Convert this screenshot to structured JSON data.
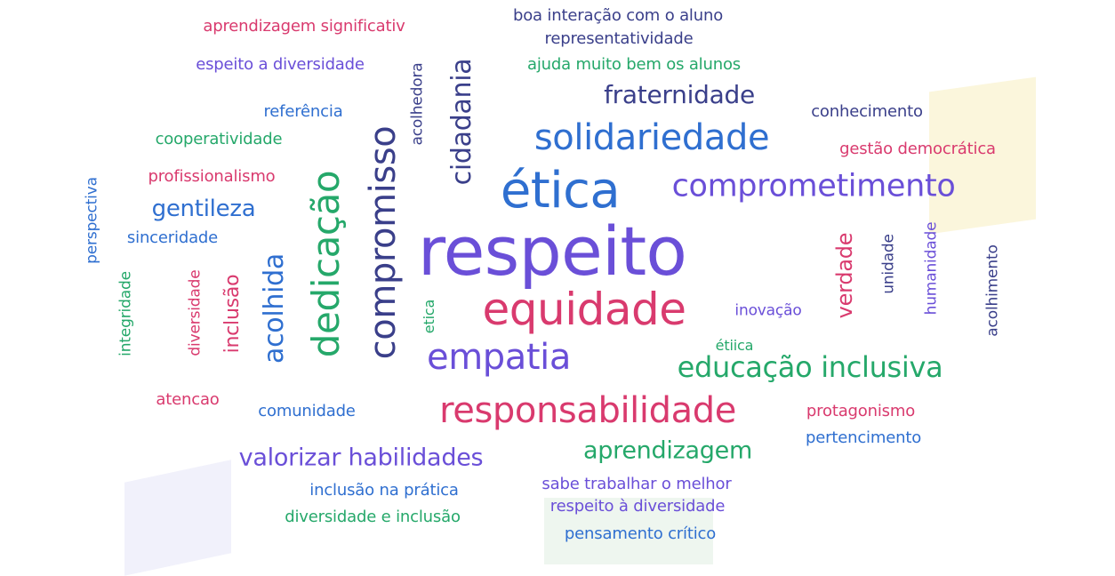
{
  "colors": {
    "purple": "#6a4fd8",
    "blue": "#2f6fd0",
    "green": "#25a86a",
    "pink": "#d93a6e",
    "navy": "#3a3f8a"
  },
  "words": [
    {
      "text": "respeito",
      "color": "#6a4fd8"
    },
    {
      "text": "ética",
      "color": "#2f6fd0"
    },
    {
      "text": "equidade",
      "color": "#d93a6e"
    },
    {
      "text": "responsabilidade",
      "color": "#d93a6e"
    },
    {
      "text": "solidariedade",
      "color": "#2f6fd0"
    },
    {
      "text": "comprometimento",
      "color": "#6a4fd8"
    },
    {
      "text": "empatia",
      "color": "#6a4fd8"
    },
    {
      "text": "educação inclusiva",
      "color": "#25a86a"
    },
    {
      "text": "fraternidade",
      "color": "#3a3f8a"
    },
    {
      "text": "valorizar habilidades",
      "color": "#6a4fd8"
    },
    {
      "text": "aprendizagem",
      "color": "#25a86a"
    },
    {
      "text": "gentileza",
      "color": "#2f6fd0"
    },
    {
      "text": "compromisso",
      "color": "#3a3f8a"
    },
    {
      "text": "dedicação",
      "color": "#25a86a"
    },
    {
      "text": "cidadania",
      "color": "#3a3f8a"
    },
    {
      "text": "acolhida",
      "color": "#2f6fd0"
    },
    {
      "text": "inclusão",
      "color": "#d93a6e"
    },
    {
      "text": "verdade",
      "color": "#d93a6e"
    },
    {
      "text": "boa interação com o aluno",
      "color": "#3a3f8a"
    },
    {
      "text": "representatividade",
      "color": "#3a3f8a"
    },
    {
      "text": "aprendizagem significativ",
      "color": "#d93a6e"
    },
    {
      "text": "espeito a diversidade",
      "color": "#6a4fd8"
    },
    {
      "text": "ajuda muito bem os alunos",
      "color": "#25a86a"
    },
    {
      "text": "referência",
      "color": "#2f6fd0"
    },
    {
      "text": "cooperatividade",
      "color": "#25a86a"
    },
    {
      "text": "profissionalismo",
      "color": "#d93a6e"
    },
    {
      "text": "sinceridade",
      "color": "#2f6fd0"
    },
    {
      "text": "conhecimento",
      "color": "#3a3f8a"
    },
    {
      "text": "gestão democrática",
      "color": "#d93a6e"
    },
    {
      "text": "inovação",
      "color": "#6a4fd8"
    },
    {
      "text": "étiica",
      "color": "#25a86a"
    },
    {
      "text": "atencao",
      "color": "#d93a6e"
    },
    {
      "text": "comunidade",
      "color": "#2f6fd0"
    },
    {
      "text": "protagonismo",
      "color": "#d93a6e"
    },
    {
      "text": "pertencimento",
      "color": "#2f6fd0"
    },
    {
      "text": "inclusão na prática",
      "color": "#2f6fd0"
    },
    {
      "text": "diversidade e inclusão",
      "color": "#25a86a"
    },
    {
      "text": "sabe trabalhar o melhor",
      "color": "#6a4fd8"
    },
    {
      "text": "respeito à diversidade",
      "color": "#6a4fd8"
    },
    {
      "text": "pensamento crítico",
      "color": "#2f6fd0"
    },
    {
      "text": "perspectiva",
      "color": "#2f6fd0"
    },
    {
      "text": "integridade",
      "color": "#25a86a"
    },
    {
      "text": "diversidade",
      "color": "#d93a6e"
    },
    {
      "text": "acolhedora",
      "color": "#3a3f8a"
    },
    {
      "text": "etica",
      "color": "#25a86a"
    },
    {
      "text": "unidade",
      "color": "#3a3f8a"
    },
    {
      "text": "humanidade",
      "color": "#6a4fd8"
    },
    {
      "text": "acolhimento",
      "color": "#3a3f8a"
    }
  ]
}
